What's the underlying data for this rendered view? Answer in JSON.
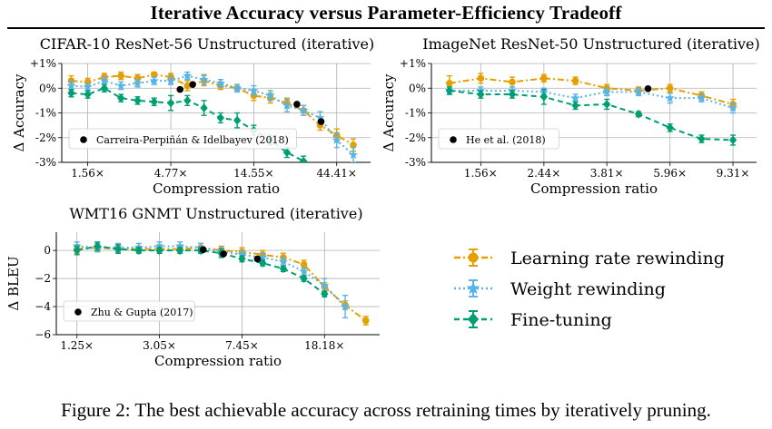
{
  "figure_title": "Iterative Accuracy versus Parameter-Efficiency Tradeoff",
  "caption": "Figure 2: The best achievable accuracy across retraining times by iteratively pruning.",
  "colors": {
    "lr_rewinding": "#E69F00",
    "weight_rewinding": "#56B4E9",
    "fine_tuning": "#009E73",
    "baseline": "#000000"
  },
  "legend": [
    {
      "label": "Learning rate rewinding",
      "marker": "circle",
      "color": "#E69F00",
      "dash": "dashdot"
    },
    {
      "label": "Weight rewinding",
      "marker": "star",
      "color": "#56B4E9",
      "dash": "dotted"
    },
    {
      "label": "Fine-tuning",
      "marker": "diamond",
      "color": "#009E73",
      "dash": "dashed"
    }
  ],
  "chart_data": [
    {
      "type": "line",
      "title": "CIFAR-10 ResNet-56 Unstructured (iterative)",
      "xlabel": "Compression ratio",
      "ylabel": "Δ Accuracy",
      "xscale": "log",
      "xlim": [
        1.1,
        70
      ],
      "ylim": [
        -3,
        1
      ],
      "xticks": [
        1.56,
        4.77,
        14.55,
        44.41
      ],
      "xticklabels": [
        "1.56×",
        "4.77×",
        "14.55×",
        "44.41×"
      ],
      "yticks": [
        1,
        0,
        -1,
        -2,
        -3
      ],
      "yticklabels": [
        "+1%",
        "0%",
        "-1%",
        "-2%",
        "-3%"
      ],
      "grid": true,
      "series": [
        {
          "name": "Learning rate rewinding",
          "x": [
            1.25,
            1.56,
            1.95,
            2.44,
            3.05,
            3.81,
            4.77,
            5.96,
            7.45,
            9.31,
            11.64,
            14.55,
            18.19,
            22.74,
            28.42,
            35.53,
            44.41,
            55.51
          ],
          "y": [
            0.3,
            0.25,
            0.45,
            0.5,
            0.4,
            0.55,
            0.45,
            0.1,
            0.3,
            0.1,
            0.0,
            -0.3,
            -0.4,
            -0.6,
            -0.9,
            -1.5,
            -1.9,
            -2.3
          ],
          "err": [
            0.2,
            0.15,
            0.15,
            0.15,
            0.15,
            0.1,
            0.15,
            0.2,
            0.2,
            0.15,
            0.15,
            0.2,
            0.2,
            0.2,
            0.2,
            0.2,
            0.25,
            0.25
          ]
        },
        {
          "name": "Weight rewinding",
          "x": [
            1.25,
            1.56,
            1.95,
            2.44,
            3.05,
            3.81,
            4.77,
            5.96,
            7.45,
            9.31,
            11.64,
            14.55,
            18.19,
            22.74,
            28.42,
            35.53,
            44.41,
            55.51
          ],
          "y": [
            0.1,
            0.05,
            0.3,
            0.1,
            0.2,
            0.3,
            0.3,
            0.5,
            0.35,
            0.2,
            0.0,
            -0.1,
            -0.3,
            -0.7,
            -0.9,
            -1.2,
            -2.1,
            -2.7
          ],
          "err": [
            0.2,
            0.15,
            0.15,
            0.15,
            0.15,
            0.15,
            0.15,
            0.15,
            0.2,
            0.15,
            0.15,
            0.2,
            0.2,
            0.25,
            0.2,
            0.25,
            0.3,
            0.3
          ]
        },
        {
          "name": "Fine-tuning",
          "x": [
            1.25,
            1.56,
            1.95,
            2.44,
            3.05,
            3.81,
            4.77,
            5.96,
            7.45,
            9.31,
            11.64,
            14.55,
            18.19,
            22.74,
            28.42
          ],
          "y": [
            -0.2,
            -0.25,
            0.0,
            -0.4,
            -0.5,
            -0.55,
            -0.6,
            -0.5,
            -0.8,
            -1.2,
            -1.3,
            -1.7,
            -2.1,
            -2.6,
            -2.95
          ],
          "err": [
            0.15,
            0.15,
            0.15,
            0.15,
            0.15,
            0.15,
            0.3,
            0.2,
            0.3,
            0.2,
            0.3,
            0.2,
            0.2,
            0.2,
            0.2
          ]
        }
      ],
      "baseline": {
        "label": "Carreira-Perpiñán & Idelbayev (2018)",
        "points": [
          {
            "x": 5.4,
            "y": -0.05
          },
          {
            "x": 6.4,
            "y": 0.15
          },
          {
            "x": 26.0,
            "y": -0.65
          },
          {
            "x": 36.0,
            "y": -1.35
          }
        ]
      }
    },
    {
      "type": "line",
      "title": "ImageNet ResNet-50 Unstructured (iterative)",
      "xlabel": "Compression ratio",
      "ylabel": "Δ Accuracy",
      "xscale": "log",
      "xlim": [
        1.1,
        11
      ],
      "ylim": [
        -3,
        1
      ],
      "xticks": [
        1.56,
        2.44,
        3.81,
        5.96,
        9.31
      ],
      "xticklabels": [
        "1.56×",
        "2.44×",
        "3.81×",
        "5.96×",
        "9.31×"
      ],
      "yticks": [
        1,
        0,
        -1,
        -2,
        -3
      ],
      "yticklabels": [
        "+1%",
        "0%",
        "-1%",
        "-2%",
        "-3%"
      ],
      "grid": true,
      "series": [
        {
          "name": "Learning rate rewinding",
          "x": [
            1.25,
            1.56,
            1.95,
            2.44,
            3.05,
            3.81,
            4.77,
            5.96,
            7.45,
            9.31
          ],
          "y": [
            0.2,
            0.4,
            0.25,
            0.4,
            0.3,
            0.0,
            -0.1,
            0.0,
            -0.3,
            -0.65
          ],
          "err": [
            0.3,
            0.2,
            0.2,
            0.15,
            0.15,
            0.15,
            0.15,
            0.15,
            0.15,
            0.2
          ]
        },
        {
          "name": "Weight rewinding",
          "x": [
            1.25,
            1.56,
            1.95,
            2.44,
            3.05,
            3.81,
            4.77,
            5.96,
            7.45,
            9.31
          ],
          "y": [
            -0.1,
            -0.1,
            -0.1,
            -0.15,
            -0.4,
            -0.15,
            -0.15,
            -0.4,
            -0.4,
            -0.8
          ],
          "err": [
            0.15,
            0.15,
            0.15,
            0.15,
            0.15,
            0.15,
            0.15,
            0.2,
            0.15,
            0.2
          ]
        },
        {
          "name": "Fine-tuning",
          "x": [
            1.25,
            1.56,
            1.95,
            2.44,
            3.05,
            3.81,
            4.77,
            5.96,
            7.45,
            9.31
          ],
          "y": [
            -0.1,
            -0.25,
            -0.25,
            -0.35,
            -0.7,
            -0.65,
            -1.05,
            -1.6,
            -2.05,
            -2.1
          ],
          "err": [
            0.15,
            0.15,
            0.15,
            0.3,
            0.15,
            0.2,
            0.1,
            0.15,
            0.15,
            0.2
          ]
        }
      ],
      "baseline": {
        "label": "He et al. (2018)",
        "points": [
          {
            "x": 5.1,
            "y": -0.02
          }
        ]
      }
    },
    {
      "type": "line",
      "title": "WMT16 GNMT Unstructured (iterative)",
      "xlabel": "Compression ratio",
      "ylabel": "Δ BLEU",
      "xscale": "log",
      "xlim": [
        1.0,
        33
      ],
      "ylim": [
        -6,
        1.3
      ],
      "xticks": [
        1.25,
        3.05,
        7.45,
        18.18
      ],
      "xticklabels": [
        "1.25×",
        "3.05×",
        "7.45×",
        "18.18×"
      ],
      "yticks": [
        0,
        -2,
        -4,
        -6
      ],
      "yticklabels": [
        "0",
        "−2",
        "−4",
        "−6"
      ],
      "grid": true,
      "series": [
        {
          "name": "Learning rate rewinding",
          "x": [
            1.25,
            1.56,
            1.95,
            2.44,
            3.05,
            3.81,
            4.77,
            5.96,
            7.45,
            9.31,
            11.64,
            14.55,
            18.19,
            22.74,
            28.42
          ],
          "y": [
            0.1,
            0.2,
            0.1,
            0.1,
            0.1,
            0.1,
            0.2,
            0.0,
            -0.1,
            -0.3,
            -0.5,
            -1.0,
            -2.6,
            -3.9,
            -5.0
          ],
          "err": [
            0.3,
            0.3,
            0.3,
            0.2,
            0.3,
            0.3,
            0.3,
            0.3,
            0.3,
            0.3,
            0.3,
            0.3,
            0.3,
            0.3,
            0.3
          ]
        },
        {
          "name": "Weight rewinding",
          "x": [
            1.25,
            1.56,
            1.95,
            2.44,
            3.05,
            3.81,
            4.77,
            5.96,
            7.45,
            9.31,
            11.64,
            14.55,
            18.19,
            22.74
          ],
          "y": [
            0.3,
            0.2,
            0.2,
            0.2,
            0.3,
            0.3,
            0.2,
            -0.1,
            -0.3,
            -0.5,
            -0.8,
            -1.5,
            -2.5,
            -4.0
          ],
          "err": [
            0.3,
            0.3,
            0.3,
            0.3,
            0.3,
            0.3,
            0.3,
            0.3,
            0.3,
            0.3,
            0.3,
            0.3,
            0.5,
            0.8
          ]
        },
        {
          "name": "Fine-tuning",
          "x": [
            1.25,
            1.56,
            1.95,
            2.44,
            3.05,
            3.81,
            4.77,
            5.96,
            7.45,
            9.31,
            11.64,
            14.55,
            18.19
          ],
          "y": [
            0.0,
            0.3,
            0.1,
            0.0,
            0.0,
            0.0,
            0.0,
            -0.2,
            -0.6,
            -0.9,
            -1.3,
            -2.0,
            -3.1
          ],
          "err": [
            0.3,
            0.3,
            0.3,
            0.2,
            0.2,
            0.2,
            0.2,
            0.3,
            0.2,
            0.2,
            0.2,
            0.2,
            0.2
          ]
        }
      ],
      "baseline": {
        "label": "Zhu & Gupta (2017)",
        "points": [
          {
            "x": 4.9,
            "y": 0.05
          },
          {
            "x": 6.1,
            "y": -0.25
          },
          {
            "x": 8.8,
            "y": -0.6
          }
        ]
      }
    }
  ]
}
